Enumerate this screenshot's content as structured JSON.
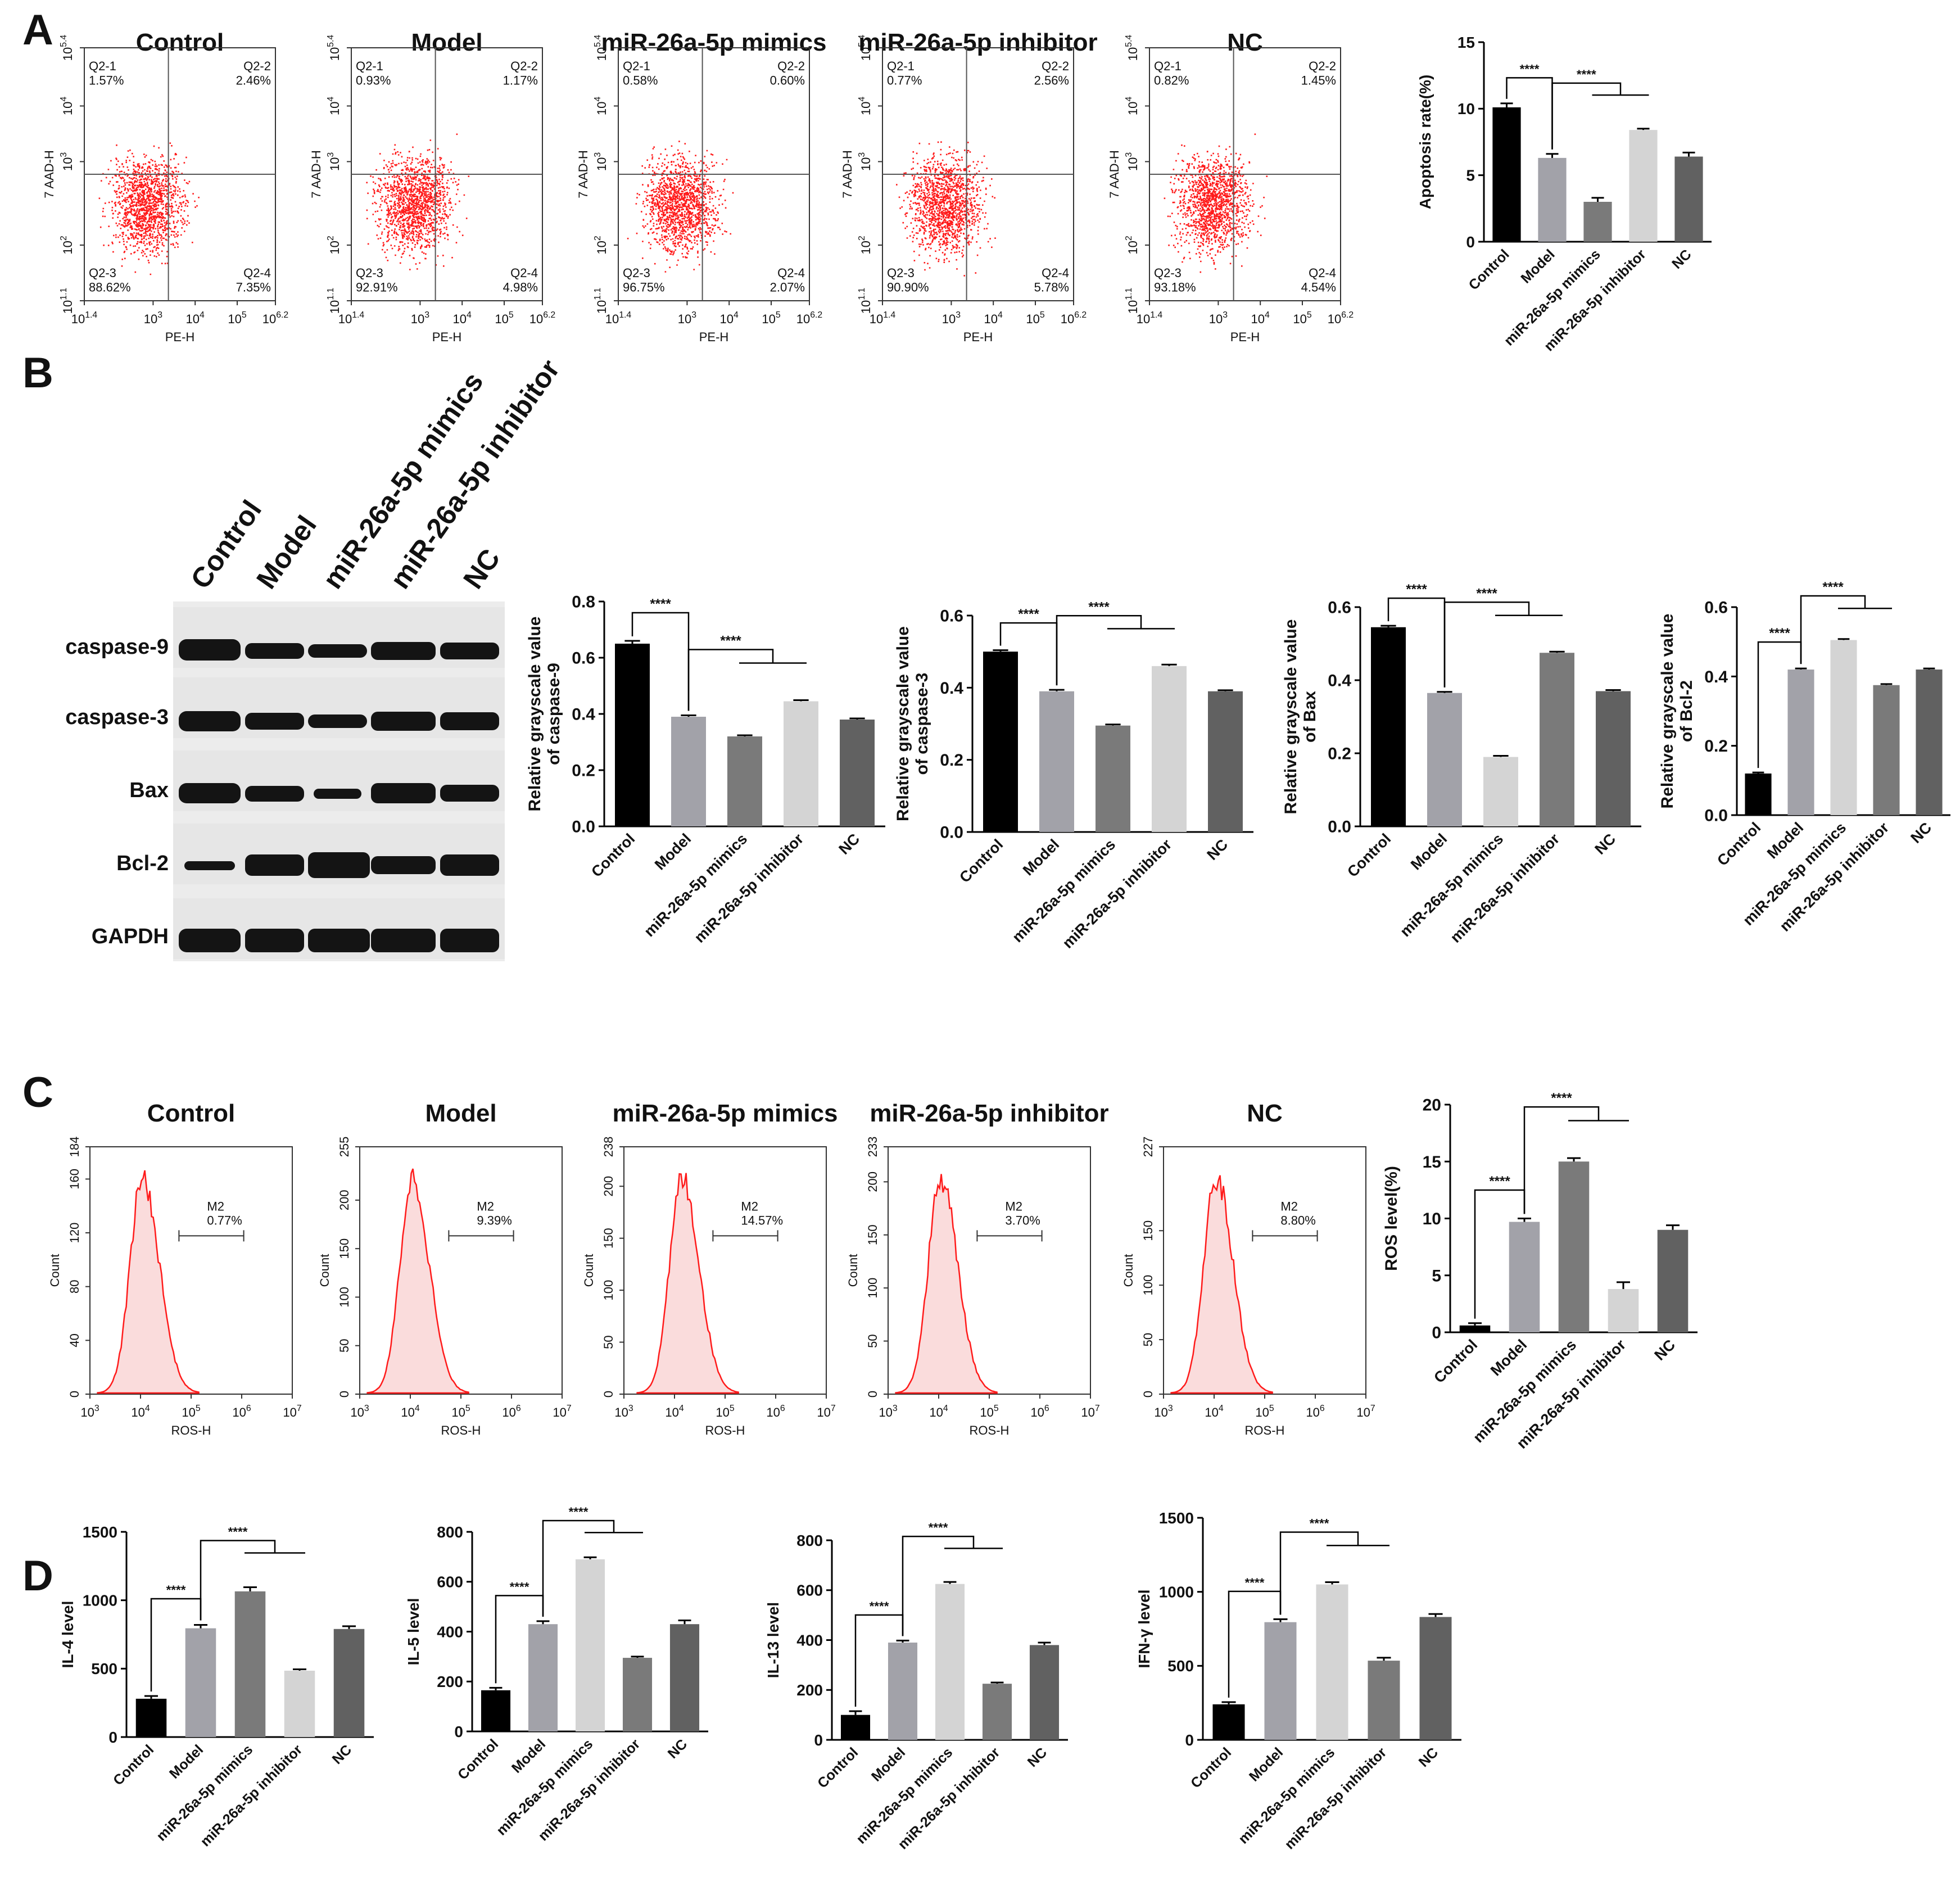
{
  "panels": {
    "A": "A",
    "B": "B",
    "C": "C",
    "D": "D"
  },
  "flow_A": {
    "x_label": "PE-H",
    "y_label": "7 AAD-H",
    "x_ticks": [
      "10^1.4",
      "10^3",
      "10^4",
      "10^5",
      "10^6.2"
    ],
    "y_ticks": [
      "10^1.1",
      "10^2",
      "10^3",
      "10^4",
      "10^5.4"
    ],
    "plots": [
      {
        "title": "Control",
        "q1": "Q2-1\n1.57%",
        "q2": "Q2-2\n2.46%",
        "q3": "Q2-3\n88.62%",
        "q4": "Q2-4\n7.35%"
      },
      {
        "title": "Model",
        "q1": "Q2-1\n0.93%",
        "q2": "Q2-2\n1.17%",
        "q3": "Q2-3\n92.91%",
        "q4": "Q2-4\n4.98%"
      },
      {
        "title": "miR-26a-5p mimics",
        "q1": "Q2-1\n0.58%",
        "q2": "Q2-2\n0.60%",
        "q3": "Q2-3\n96.75%",
        "q4": "Q2-4\n2.07%"
      },
      {
        "title": "miR-26a-5p  inhibitor",
        "q1": "Q2-1\n0.77%",
        "q2": "Q2-2\n2.56%",
        "q3": "Q2-3\n90.90%",
        "q4": "Q2-4\n5.78%"
      },
      {
        "title": "NC",
        "q1": "Q2-1\n0.82%",
        "q2": "Q2-2\n1.45%",
        "q3": "Q2-3\n93.18%",
        "q4": "Q2-4\n4.54%"
      }
    ]
  },
  "flow_C": {
    "x_label": "ROS-H",
    "y_label": "Count",
    "x_ticks": [
      "10^3",
      "10^4",
      "10^5",
      "10^6",
      "10^7"
    ],
    "plots": [
      {
        "title": "Control",
        "gate": "M2\n0.77%",
        "y_max": 184,
        "y_ticks": [
          0,
          40,
          80,
          120,
          160,
          184
        ]
      },
      {
        "title": "Model",
        "gate": "M2\n9.39%",
        "y_max": 255,
        "y_ticks": [
          0,
          50,
          100,
          150,
          200,
          255
        ]
      },
      {
        "title": "miR-26a-5p mimics",
        "gate": "M2\n14.57%",
        "y_max": 238,
        "y_ticks": [
          0,
          50,
          100,
          150,
          200,
          238
        ]
      },
      {
        "title": "miR-26a-5p  inhibitor",
        "gate": "M2\n3.70%",
        "y_max": 233,
        "y_ticks": [
          0,
          50,
          100,
          150,
          200,
          233
        ]
      },
      {
        "title": "NC",
        "gate": "M2\n8.80%",
        "y_max": 227,
        "y_ticks": [
          0,
          50,
          100,
          150,
          227
        ]
      }
    ]
  },
  "western_blot": {
    "columns": [
      "Control",
      "Model",
      "miR-26a-5p mimics",
      "miR-26a-5p  inhibitor",
      "NC"
    ],
    "rows": [
      "caspase-9",
      "caspase-3",
      "Bax",
      "Bcl-2",
      "GAPDH"
    ]
  },
  "chart_data": [
    {
      "type": "bar",
      "id": "apoptosis",
      "categories": [
        "Control",
        "Model",
        "miR-26a-5p mimics",
        "miR-26a-5p inhibitor",
        "NC"
      ],
      "values": [
        10.1,
        6.3,
        3.0,
        8.4,
        6.4
      ],
      "errors": [
        0.3,
        0.3,
        0.3,
        0.1,
        0.3
      ],
      "ylabel": "Apoptosis rate(%)",
      "ylim": [
        0,
        15
      ],
      "yticks": [
        0,
        5,
        10,
        15
      ],
      "colors": [
        "#000000",
        "#a2a2a9",
        "#7a7a7a",
        "#d4d4d4",
        "#616161"
      ],
      "brackets": [
        {
          "from": 0,
          "to": [
            1
          ],
          "label": "****"
        },
        {
          "from": 1,
          "to": [
            2,
            3
          ],
          "label": "****"
        }
      ]
    },
    {
      "type": "bar",
      "id": "caspase9",
      "categories": [
        "Control",
        "Model",
        "miR-26a-5p mimics",
        "miR-26a-5p inhibitor",
        "NC"
      ],
      "values": [
        0.65,
        0.39,
        0.32,
        0.445,
        0.38
      ],
      "errors": [
        0.01,
        0.005,
        0.004,
        0.004,
        0.004
      ],
      "ylabel": "Relative grayscale value\nof caspase-9",
      "ylim": [
        0,
        0.8
      ],
      "yticks": [
        0.0,
        0.2,
        0.4,
        0.6,
        0.8
      ],
      "colors": [
        "#000000",
        "#a2a2a9",
        "#7a7a7a",
        "#d4d4d4",
        "#616161"
      ],
      "brackets": [
        {
          "from": 0,
          "to": [
            1
          ],
          "label": "****"
        },
        {
          "from": 1,
          "to": [
            2,
            3
          ],
          "label": "****"
        }
      ]
    },
    {
      "type": "bar",
      "id": "caspase3",
      "categories": [
        "Control",
        "Model",
        "miR-26a-5p mimics",
        "miR-26a-5p inhibitor",
        "NC"
      ],
      "values": [
        0.5,
        0.39,
        0.295,
        0.46,
        0.39
      ],
      "errors": [
        0.004,
        0.004,
        0.003,
        0.004,
        0.003
      ],
      "ylabel": "Relative grayscale value\nof caspase-3",
      "ylim": [
        0,
        0.6
      ],
      "yticks": [
        0.0,
        0.2,
        0.4,
        0.6
      ],
      "colors": [
        "#000000",
        "#a2a2a9",
        "#7a7a7a",
        "#d4d4d4",
        "#616161"
      ],
      "brackets": [
        {
          "from": 0,
          "to": [
            1
          ],
          "label": "****"
        },
        {
          "from": 1,
          "to": [
            2,
            3
          ],
          "label": "****"
        }
      ]
    },
    {
      "type": "bar",
      "id": "bax",
      "categories": [
        "Control",
        "Model",
        "miR-26a-5p mimics",
        "miR-26a-5p inhibitor",
        "NC"
      ],
      "values": [
        0.545,
        0.365,
        0.19,
        0.475,
        0.37
      ],
      "errors": [
        0.004,
        0.003,
        0.003,
        0.003,
        0.003
      ],
      "ylabel": "Relative grayscale value\nof Bax",
      "ylim": [
        0,
        0.6
      ],
      "yticks": [
        0.0,
        0.2,
        0.4,
        0.6
      ],
      "colors": [
        "#000000",
        "#a2a2a9",
        "#d4d4d4",
        "#7a7a7a",
        "#616161"
      ],
      "brackets": [
        {
          "from": 0,
          "to": [
            1
          ],
          "label": "****"
        },
        {
          "from": 1,
          "to": [
            2,
            3
          ],
          "label": "****"
        }
      ]
    },
    {
      "type": "bar",
      "id": "bcl2",
      "categories": [
        "Control",
        "Model",
        "miR-26a-5p mimics",
        "miR-26a-5p inhibitor",
        "NC"
      ],
      "values": [
        0.12,
        0.42,
        0.505,
        0.375,
        0.42
      ],
      "errors": [
        0.003,
        0.003,
        0.003,
        0.003,
        0.003
      ],
      "ylabel": "Relative grayscale value\nof Bcl-2",
      "ylim": [
        0,
        0.6
      ],
      "yticks": [
        0.0,
        0.2,
        0.4,
        0.6
      ],
      "colors": [
        "#000000",
        "#a2a2a9",
        "#d4d4d4",
        "#7a7a7a",
        "#616161"
      ],
      "brackets": [
        {
          "from": 0,
          "to": [
            1
          ],
          "label": "****"
        },
        {
          "from": 1,
          "to": [
            2,
            3
          ],
          "label": "****"
        }
      ]
    },
    {
      "type": "bar",
      "id": "ros",
      "categories": [
        "Control",
        "Model",
        "miR-26a-5p mimics",
        "miR-26a-5p inhibitor",
        "NC"
      ],
      "values": [
        0.6,
        9.7,
        15.0,
        3.8,
        9.0
      ],
      "errors": [
        0.2,
        0.3,
        0.3,
        0.6,
        0.4
      ],
      "ylabel": "ROS level(%)",
      "ylim": [
        0,
        20
      ],
      "yticks": [
        0,
        5,
        10,
        15,
        20
      ],
      "colors": [
        "#000000",
        "#a2a2a9",
        "#7a7a7a",
        "#d4d4d4",
        "#616161"
      ],
      "brackets": [
        {
          "from": 0,
          "to": [
            1
          ],
          "label": "****"
        },
        {
          "from": 1,
          "to": [
            2,
            3
          ],
          "label": "****"
        }
      ]
    },
    {
      "type": "bar",
      "id": "il4",
      "categories": [
        "Control",
        "Model",
        "miR-26a-5p mimics",
        "miR-26a-5p inhibitor",
        "NC"
      ],
      "values": [
        280,
        795,
        1065,
        485,
        790
      ],
      "errors": [
        20,
        25,
        30,
        10,
        20
      ],
      "ylabel": "IL-4 level",
      "ylim": [
        0,
        1500
      ],
      "yticks": [
        0,
        500,
        1000,
        1500
      ],
      "colors": [
        "#000000",
        "#a2a2a9",
        "#7a7a7a",
        "#d4d4d4",
        "#616161"
      ],
      "brackets": [
        {
          "from": 0,
          "to": [
            1
          ],
          "label": "****"
        },
        {
          "from": 1,
          "to": [
            2,
            3
          ],
          "label": "****"
        }
      ]
    },
    {
      "type": "bar",
      "id": "il5",
      "categories": [
        "Control",
        "Model",
        "miR-26a-5p mimics",
        "miR-26a-5p inhibitor",
        "NC"
      ],
      "values": [
        165,
        430,
        690,
        295,
        430
      ],
      "errors": [
        10,
        12,
        8,
        5,
        15
      ],
      "ylabel": "IL-5 level",
      "ylim": [
        0,
        800
      ],
      "yticks": [
        0,
        200,
        400,
        600,
        800
      ],
      "colors": [
        "#000000",
        "#a2a2a9",
        "#d4d4d4",
        "#7a7a7a",
        "#616161"
      ],
      "brackets": [
        {
          "from": 0,
          "to": [
            1
          ],
          "label": "****"
        },
        {
          "from": 1,
          "to": [
            2,
            3
          ],
          "label": "****"
        }
      ]
    },
    {
      "type": "bar",
      "id": "il13",
      "categories": [
        "Control",
        "Model",
        "miR-26a-5p mimics",
        "miR-26a-5p inhibitor",
        "NC"
      ],
      "values": [
        100,
        390,
        625,
        225,
        380
      ],
      "errors": [
        15,
        8,
        8,
        5,
        10
      ],
      "ylabel": "IL-13 level",
      "ylim": [
        0,
        800
      ],
      "yticks": [
        0,
        200,
        400,
        600,
        800
      ],
      "colors": [
        "#000000",
        "#a2a2a9",
        "#d4d4d4",
        "#7a7a7a",
        "#616161"
      ],
      "brackets": [
        {
          "from": 0,
          "to": [
            1
          ],
          "label": "****"
        },
        {
          "from": 1,
          "to": [
            2,
            3
          ],
          "label": "****"
        }
      ]
    },
    {
      "type": "bar",
      "id": "ifng",
      "categories": [
        "Control",
        "Model",
        "miR-26a-5p mimics",
        "miR-26a-5p inhibitor",
        "NC"
      ],
      "values": [
        240,
        795,
        1050,
        535,
        830
      ],
      "errors": [
        15,
        20,
        15,
        20,
        20
      ],
      "ylabel": "IFN-γ level",
      "ylim": [
        0,
        1500
      ],
      "yticks": [
        0,
        500,
        1000,
        1500
      ],
      "colors": [
        "#000000",
        "#a2a2a9",
        "#d4d4d4",
        "#7a7a7a",
        "#616161"
      ],
      "brackets": [
        {
          "from": 0,
          "to": [
            1
          ],
          "label": "****"
        },
        {
          "from": 1,
          "to": [
            2,
            3
          ],
          "label": "****"
        }
      ]
    }
  ]
}
